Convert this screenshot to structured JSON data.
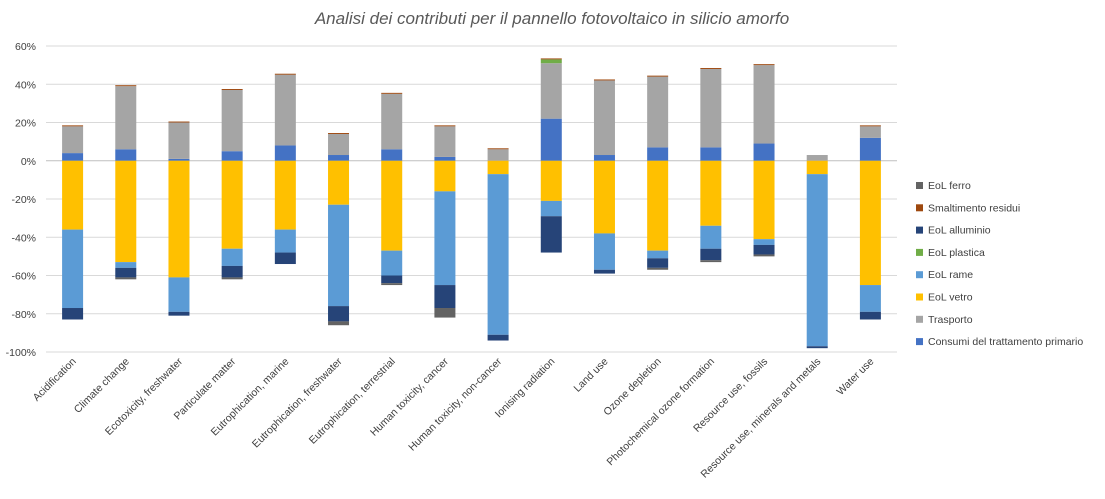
{
  "chart_data": {
    "type": "bar",
    "stacked": true,
    "title": "Analisi dei contributi per il pannello fotovoltaico in silicio amorfo",
    "xlabel": "",
    "ylabel": "",
    "ylim": [
      -100,
      60
    ],
    "yticks": [
      60,
      40,
      20,
      0,
      -20,
      -40,
      -60,
      -80,
      -100
    ],
    "ytick_labels": [
      "60%",
      "40%",
      "20%",
      "0%",
      "-20%",
      "-40%",
      "-60%",
      "-80%",
      "-100%"
    ],
    "grid": true,
    "legend_position": "right",
    "categories": [
      "Acidification",
      "Climate change",
      "Ecotoxicity, freshwater",
      "Particulate matter",
      "Eutrophication, marine",
      "Eutrophication, freshwater",
      "Eutrophication, terrestrial",
      "Human toxicity, cancer",
      "Human toxicity, non-cancer",
      "Ionising radiation",
      "Land use",
      "Ozone depletion",
      "Photochemical ozone formation",
      "Resource use, fossils",
      "Resource use, minerals and metals",
      "Water use"
    ],
    "series": [
      {
        "name": "Consumi del trattamento primario",
        "color": "#4472C4",
        "values": [
          4,
          6,
          1,
          5,
          8,
          3,
          6,
          2,
          0,
          22,
          3,
          7,
          7,
          9,
          0,
          12
        ]
      },
      {
        "name": "Trasporto",
        "color": "#A5A5A5",
        "values": [
          14,
          33,
          19,
          32,
          37,
          11,
          29,
          16,
          6,
          29,
          39,
          37,
          41,
          41,
          3,
          6
        ]
      },
      {
        "name": "EoL vetro",
        "color": "#FFC000",
        "values": [
          -36,
          -53,
          -61,
          -46,
          -36,
          -23,
          -47,
          -16,
          -7,
          -21,
          -38,
          -47,
          -34,
          -41,
          -7,
          -65
        ]
      },
      {
        "name": "EoL rame",
        "color": "#5B9BD5",
        "values": [
          -41,
          -3,
          -18,
          -9,
          -12,
          -53,
          -13,
          -49,
          -84,
          -8,
          -19,
          -4,
          -12,
          -3,
          -90,
          -14
        ]
      },
      {
        "name": "EoL plastica",
        "color": "#70AD47",
        "values": [
          0,
          0,
          0,
          0,
          0,
          0,
          0,
          0,
          0,
          2,
          0,
          0,
          0,
          0,
          0,
          0
        ]
      },
      {
        "name": "EoL alluminio",
        "color": "#264478",
        "values": [
          -6,
          -5,
          -2,
          -6,
          -6,
          -8,
          -4,
          -12,
          -3,
          -19,
          -2,
          -5,
          -6,
          -5,
          -1,
          -4
        ]
      },
      {
        "name": "Smaltimento residui",
        "color": "#9E480E",
        "values": [
          0.5,
          0.5,
          0.5,
          0.5,
          0.5,
          0.5,
          0.5,
          0.5,
          0.5,
          0.5,
          0.5,
          0.5,
          0.5,
          0.5,
          0,
          0.5
        ]
      },
      {
        "name": "EoL ferro",
        "color": "#636363",
        "values": [
          0,
          -1,
          0,
          -1,
          0,
          -2,
          -1,
          -5,
          0,
          0,
          0,
          -1,
          -1,
          -1,
          0,
          0
        ]
      }
    ],
    "legend_order": [
      "EoL ferro",
      "Smaltimento residui",
      "EoL alluminio",
      "EoL plastica",
      "EoL rame",
      "EoL vetro",
      "Trasporto",
      "Consumi del trattamento primario"
    ]
  }
}
